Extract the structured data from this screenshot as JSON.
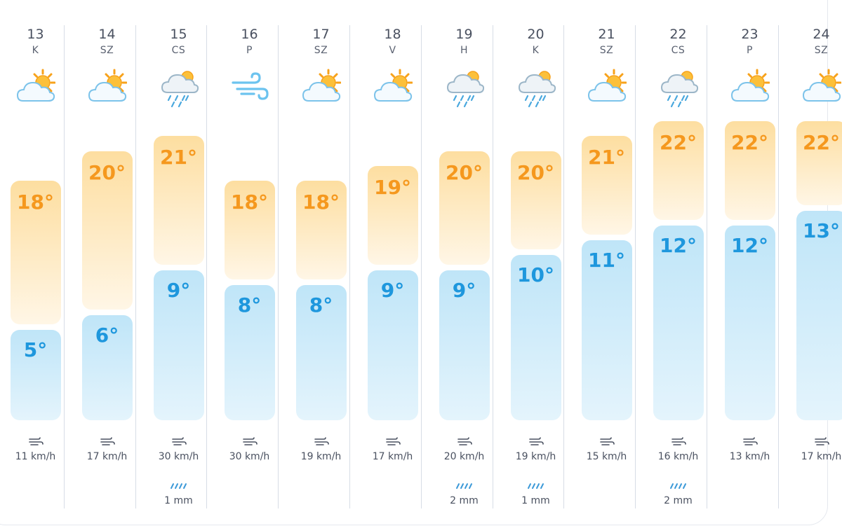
{
  "colors": {
    "max_text": "#f5981e",
    "min_text": "#1e97dd",
    "max_bar": "#fddea0",
    "min_bar": "#bfe5f8"
  },
  "scale": {
    "tmin": 5,
    "tmax": 22
  },
  "days": [
    {
      "date": "13",
      "weekday": "K",
      "icon": "partly-sunny-icon",
      "max": "18°",
      "min": "5°",
      "max_value": 18,
      "min_value": 5,
      "wind": "11 km/h",
      "rain": ""
    },
    {
      "date": "14",
      "weekday": "SZ",
      "icon": "partly-sunny-icon",
      "max": "20°",
      "min": "6°",
      "max_value": 20,
      "min_value": 6,
      "wind": "17 km/h",
      "rain": ""
    },
    {
      "date": "15",
      "weekday": "CS",
      "icon": "rain-icon",
      "max": "21°",
      "min": "9°",
      "max_value": 21,
      "min_value": 9,
      "wind": "30 km/h",
      "rain": "1 mm"
    },
    {
      "date": "16",
      "weekday": "P",
      "icon": "wind-icon",
      "max": "18°",
      "min": "8°",
      "max_value": 18,
      "min_value": 8,
      "wind": "30 km/h",
      "rain": ""
    },
    {
      "date": "17",
      "weekday": "SZ",
      "icon": "partly-sunny-icon",
      "max": "18°",
      "min": "8°",
      "max_value": 18,
      "min_value": 8,
      "wind": "19 km/h",
      "rain": ""
    },
    {
      "date": "18",
      "weekday": "V",
      "icon": "partly-sunny-icon",
      "max": "19°",
      "min": "9°",
      "max_value": 19,
      "min_value": 9,
      "wind": "17 km/h",
      "rain": ""
    },
    {
      "date": "19",
      "weekday": "H",
      "icon": "rain-icon",
      "max": "20°",
      "min": "9°",
      "max_value": 20,
      "min_value": 9,
      "wind": "20 km/h",
      "rain": "2 mm"
    },
    {
      "date": "20",
      "weekday": "K",
      "icon": "rain-icon",
      "max": "20°",
      "min": "10°",
      "max_value": 20,
      "min_value": 10,
      "wind": "19 km/h",
      "rain": "1 mm"
    },
    {
      "date": "21",
      "weekday": "SZ",
      "icon": "partly-sunny-icon",
      "max": "21°",
      "min": "11°",
      "max_value": 21,
      "min_value": 11,
      "wind": "15 km/h",
      "rain": ""
    },
    {
      "date": "22",
      "weekday": "CS",
      "icon": "rain-icon",
      "max": "22°",
      "min": "12°",
      "max_value": 22,
      "min_value": 12,
      "wind": "16 km/h",
      "rain": "2 mm"
    },
    {
      "date": "23",
      "weekday": "P",
      "icon": "partly-sunny-icon",
      "max": "22°",
      "min": "12°",
      "max_value": 22,
      "min_value": 12,
      "wind": "13 km/h",
      "rain": ""
    },
    {
      "date": "24",
      "weekday": "SZ",
      "icon": "partly-sunny-icon",
      "max": "22°",
      "min": "13°",
      "max_value": 22,
      "min_value": 13,
      "wind": "17 km/h",
      "rain": ""
    }
  ]
}
